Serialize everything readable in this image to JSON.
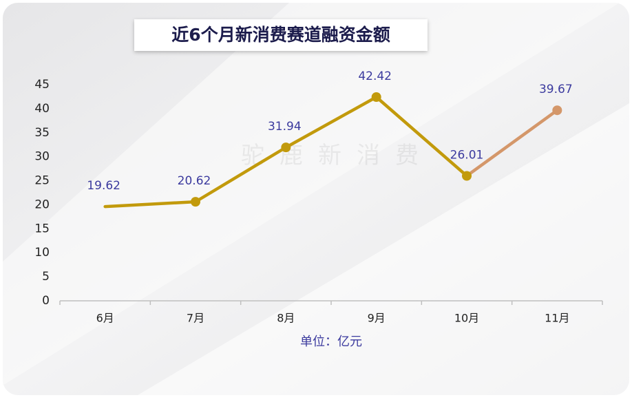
{
  "chart_data": {
    "type": "line",
    "title": "近6个月新消费赛道融资金额",
    "watermark": "驼鹿新消费",
    "x_label": "单位：亿元",
    "categories": [
      "6月",
      "7月",
      "8月",
      "9月",
      "10月",
      "11月"
    ],
    "series": [
      {
        "values": [
          19.62,
          20.62,
          31.94,
          42.42,
          26.01,
          39.67
        ],
        "point_colors": [
          "#c29a0c",
          "#c29a0c",
          "#c29a0c",
          "#c29a0c",
          "#c29a0c",
          "#d4976a"
        ],
        "show_markers": [
          false,
          true,
          true,
          true,
          true,
          true
        ]
      }
    ],
    "ylim": [
      0,
      45
    ],
    "yticks": [
      0,
      5,
      10,
      15,
      20,
      25,
      30,
      35,
      40,
      45
    ],
    "label_color": "#3b3a9e"
  }
}
